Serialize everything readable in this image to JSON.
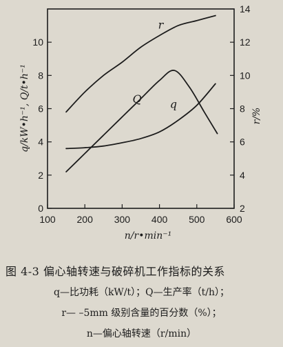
{
  "chart_data": {
    "type": "line",
    "xlabel": "n/r•min⁻¹",
    "ylabel_left": "q/kW•h⁻¹, Q/t•h⁻¹",
    "ylabel_right": "r/%",
    "x_ticks": [
      100,
      200,
      300,
      400,
      500,
      600
    ],
    "y_left_ticks": [
      0,
      2,
      4,
      6,
      8,
      10
    ],
    "y_right_ticks": [
      2,
      4,
      6,
      8,
      10,
      12,
      14
    ],
    "xlim": [
      100,
      600
    ],
    "ylim_left": [
      0,
      12
    ],
    "ylim_right": [
      2,
      14
    ],
    "grid": false,
    "series": [
      {
        "name": "r",
        "axis": "right",
        "x": [
          150,
          200,
          250,
          300,
          350,
          400,
          450,
          500,
          550
        ],
        "values": [
          7.8,
          9.0,
          10.0,
          10.8,
          11.7,
          12.4,
          13.0,
          13.3,
          13.6
        ]
      },
      {
        "name": "Q",
        "axis": "left",
        "x": [
          150,
          200,
          250,
          300,
          350,
          400,
          440,
          480,
          520,
          555
        ],
        "values": [
          2.2,
          3.3,
          4.4,
          5.5,
          6.6,
          7.7,
          8.3,
          7.3,
          5.8,
          4.5
        ]
      },
      {
        "name": "q",
        "axis": "left",
        "x": [
          150,
          200,
          250,
          300,
          350,
          400,
          450,
          500,
          550
        ],
        "values": [
          3.6,
          3.65,
          3.75,
          3.95,
          4.2,
          4.6,
          5.3,
          6.2,
          7.5
        ]
      }
    ]
  },
  "caption": {
    "title": "图 4-3   偏心轴转速与破碎机工作指标的关系",
    "legend_lines": [
      "q—比功耗（kW/t）；Q—生产率（t/h）；",
      "r— –5mm 级别含量的百分数（%）；",
      "n—偏心轴转速（r/min）"
    ]
  }
}
